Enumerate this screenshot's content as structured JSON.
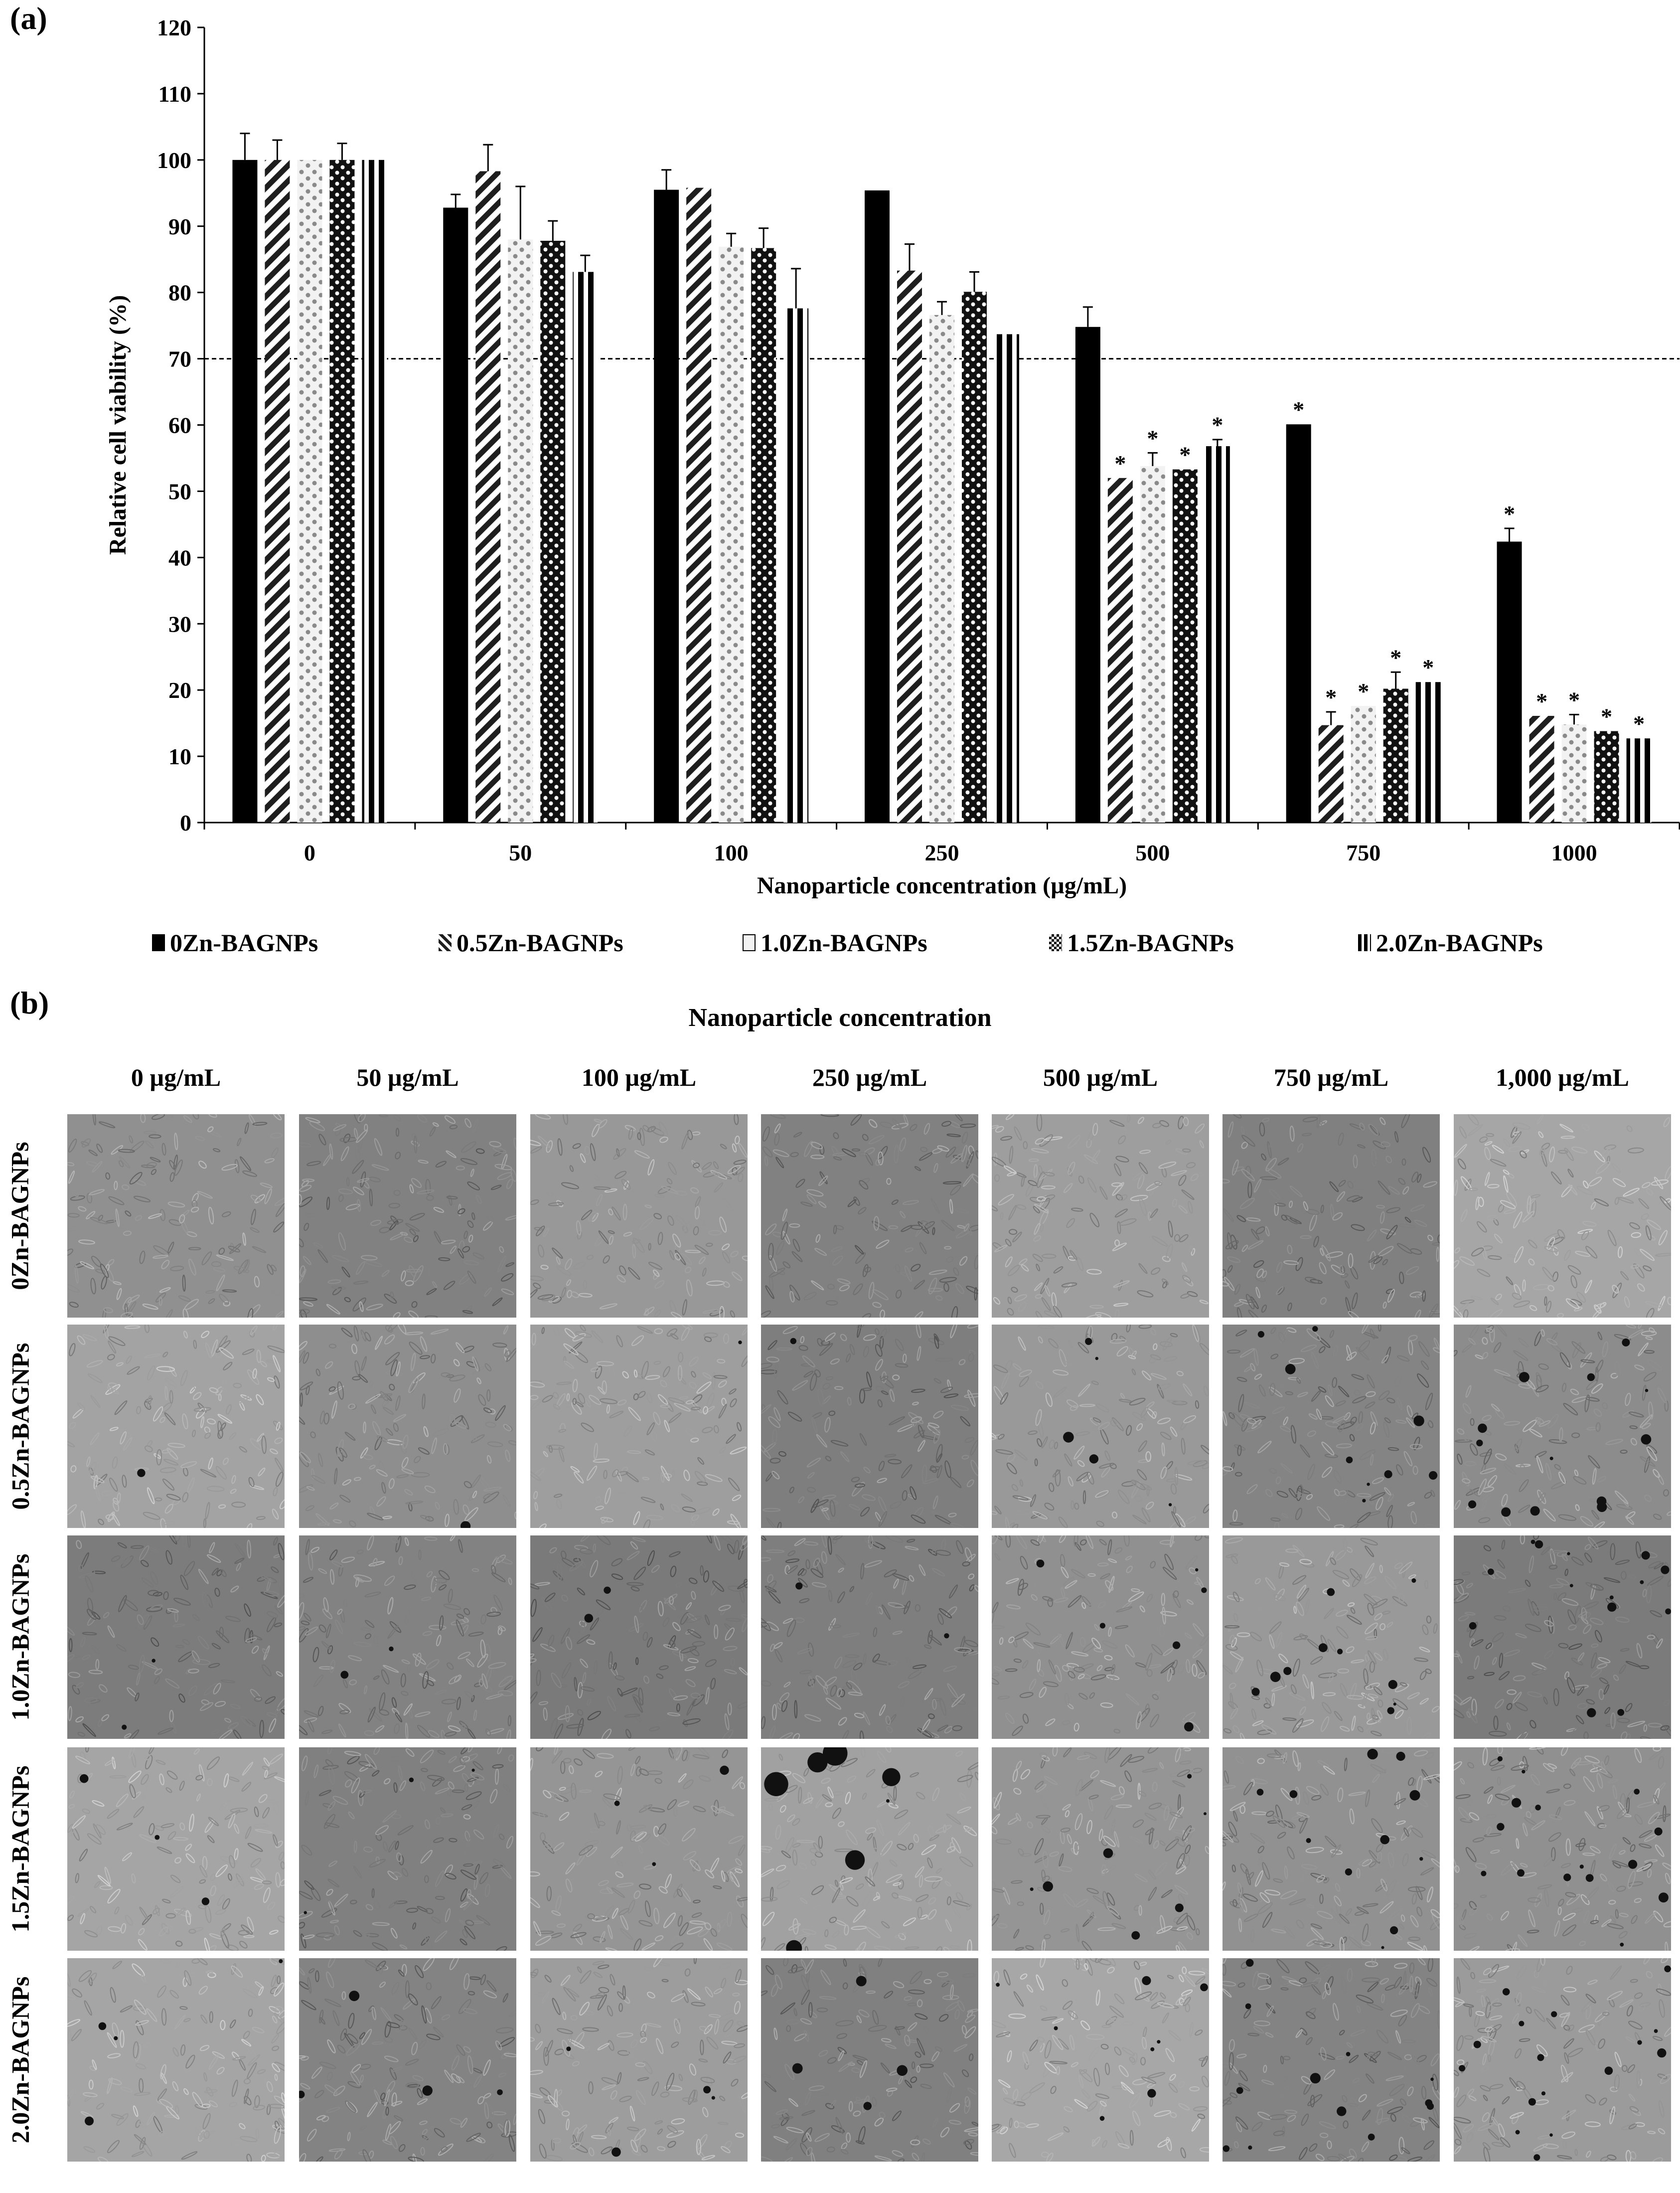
{
  "panel_a_label": "(a)",
  "panel_b_label": "(b)",
  "chart_data": {
    "type": "bar",
    "title": "",
    "xlabel": "Nanoparticle concentration (µg/mL)",
    "ylabel": "Relative cell viability (%)",
    "ylim": [
      0,
      120
    ],
    "yticks": [
      0,
      10,
      20,
      30,
      40,
      50,
      60,
      70,
      80,
      90,
      100,
      110,
      120
    ],
    "categories": [
      "0",
      "50",
      "100",
      "250",
      "500",
      "750",
      "1000"
    ],
    "reference_line": 70,
    "grid": false,
    "legend_position": "bottom",
    "significance_marker": "*",
    "series": [
      {
        "name": "0Zn-BAGNPs",
        "pattern": "solid",
        "values": [
          100,
          92.8,
          95.5,
          95.4,
          74.8,
          60.1,
          42.4
        ],
        "errors": [
          4,
          2,
          3,
          0,
          3,
          0,
          2
        ],
        "significant": [
          false,
          false,
          false,
          false,
          false,
          true,
          true
        ]
      },
      {
        "name": "0.5Zn-BAGNPs",
        "pattern": "diagonal",
        "values": [
          100,
          98.3,
          95.8,
          83.3,
          52.0,
          14.7,
          16.1
        ],
        "errors": [
          3,
          4,
          0,
          4,
          0,
          2,
          0
        ],
        "significant": [
          false,
          false,
          false,
          false,
          true,
          true,
          true
        ]
      },
      {
        "name": "1.0Zn-BAGNPs",
        "pattern": "dots",
        "values": [
          100,
          88.0,
          86.9,
          76.6,
          53.8,
          17.6,
          14.8
        ],
        "errors": [
          0,
          8,
          2,
          2,
          2,
          0,
          1.5
        ],
        "significant": [
          false,
          false,
          false,
          false,
          true,
          true,
          true
        ]
      },
      {
        "name": "1.5Zn-BAGNPs",
        "pattern": "checker",
        "values": [
          100,
          87.8,
          86.7,
          80.1,
          53.3,
          20.2,
          13.8
        ],
        "errors": [
          2.5,
          3,
          3,
          3,
          0,
          2.5,
          0
        ],
        "significant": [
          false,
          false,
          false,
          false,
          true,
          true,
          true
        ]
      },
      {
        "name": "2.0Zn-BAGNPs",
        "pattern": "vstripe",
        "values": [
          100,
          83.1,
          77.6,
          73.7,
          56.8,
          21.2,
          12.7
        ],
        "errors": [
          0,
          2.5,
          6,
          0,
          1,
          0,
          0
        ],
        "significant": [
          false,
          false,
          false,
          false,
          true,
          true,
          true
        ]
      }
    ]
  },
  "micrographs": {
    "title": "Nanoparticle concentration",
    "column_headers": [
      "0 µg/mL",
      "50 µg/mL",
      "100 µg/mL",
      "250 µg/mL",
      "500 µg/mL",
      "750 µg/mL",
      "1,000 µg/mL"
    ],
    "row_labels": [
      "0Zn-BAGNPs",
      "0.5Zn-BAGNPs",
      "1.0Zn-BAGNPs",
      "1.5Zn-BAGNPs",
      "2.0Zn-BAGNPs"
    ]
  }
}
